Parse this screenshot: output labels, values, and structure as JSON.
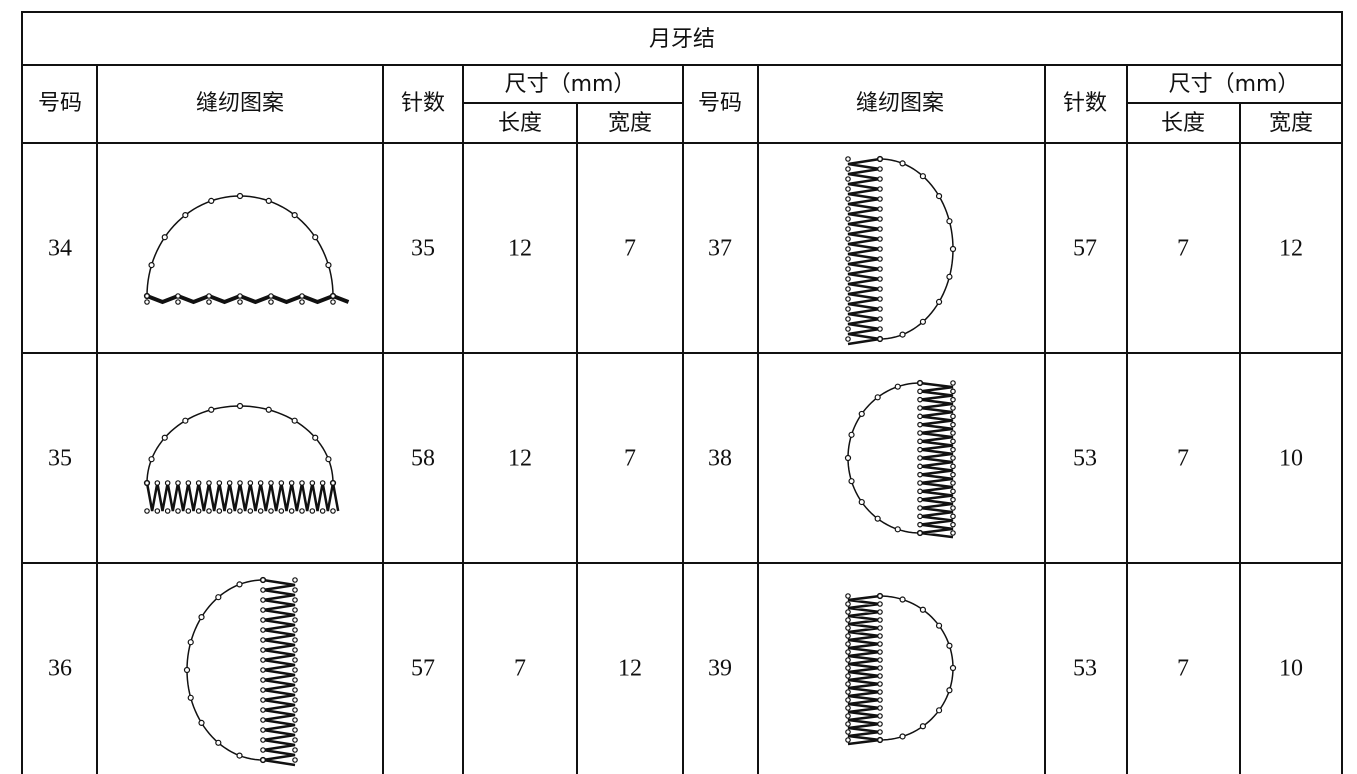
{
  "title": "月牙结",
  "header_groups": [
    {
      "number": "号码",
      "pattern": "缝纫图案",
      "stitches": "针数",
      "size": "尺寸（mm）",
      "length": "长度",
      "width": "宽度"
    },
    {
      "number": "号码",
      "pattern": "缝纫图案",
      "stitches": "针数",
      "size": "尺寸（mm）",
      "length": "长度",
      "width": "宽度"
    }
  ],
  "table": {
    "rows": [
      [
        34,
        35,
        12,
        7,
        37,
        57,
        7,
        12
      ],
      [
        35,
        58,
        12,
        7,
        38,
        53,
        7,
        10
      ],
      [
        36,
        57,
        7,
        12,
        39,
        53,
        7,
        10
      ]
    ]
  }
}
